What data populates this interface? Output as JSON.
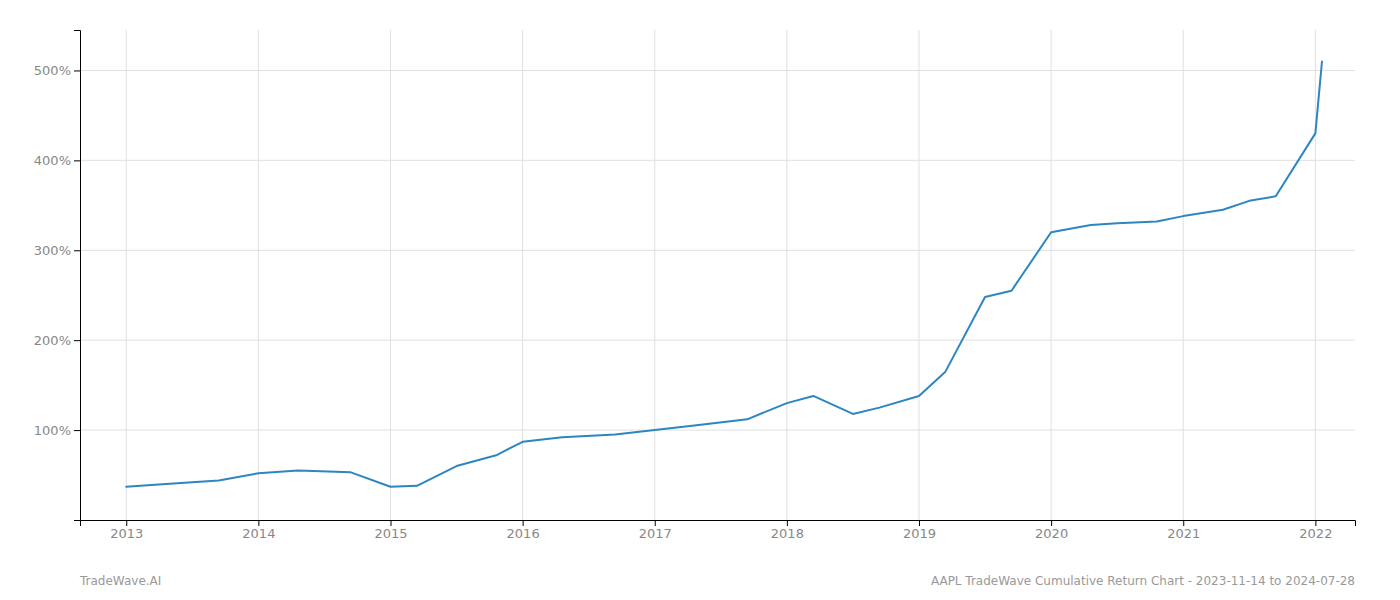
{
  "chart_data": {
    "type": "line",
    "x": [
      2013.0,
      2013.3,
      2013.7,
      2014.0,
      2014.3,
      2014.7,
      2015.0,
      2015.2,
      2015.5,
      2015.8,
      2016.0,
      2016.3,
      2016.7,
      2017.0,
      2017.3,
      2017.7,
      2018.0,
      2018.2,
      2018.5,
      2018.7,
      2019.0,
      2019.2,
      2019.5,
      2019.7,
      2020.0,
      2020.3,
      2020.5,
      2020.8,
      2021.0,
      2021.3,
      2021.5,
      2021.7,
      2022.0,
      2022.05
    ],
    "values": [
      37,
      40,
      44,
      52,
      55,
      53,
      37,
      38,
      60,
      72,
      87,
      92,
      95,
      100,
      105,
      112,
      130,
      138,
      118,
      125,
      138,
      165,
      248,
      255,
      320,
      328,
      330,
      332,
      338,
      345,
      355,
      360,
      430,
      510
    ],
    "color": "#2e86c1",
    "xlim": [
      2012.65,
      2022.3
    ],
    "xticks": [
      2013,
      2014,
      2015,
      2016,
      2017,
      2018,
      2019,
      2020,
      2021,
      2022
    ],
    "ylim": [
      0,
      545
    ],
    "yticks": [
      {
        "value": 100,
        "label": "100%"
      },
      {
        "value": 200,
        "label": "200%"
      },
      {
        "value": 300,
        "label": "300%"
      },
      {
        "value": 400,
        "label": "400%"
      },
      {
        "value": 500,
        "label": "500%"
      }
    ],
    "grid": true,
    "annotations": [
      "TradeWave.AI",
      "AAPL TradeWave Cumulative Return Chart - 2023-11-14 to 2024-07-28"
    ]
  }
}
